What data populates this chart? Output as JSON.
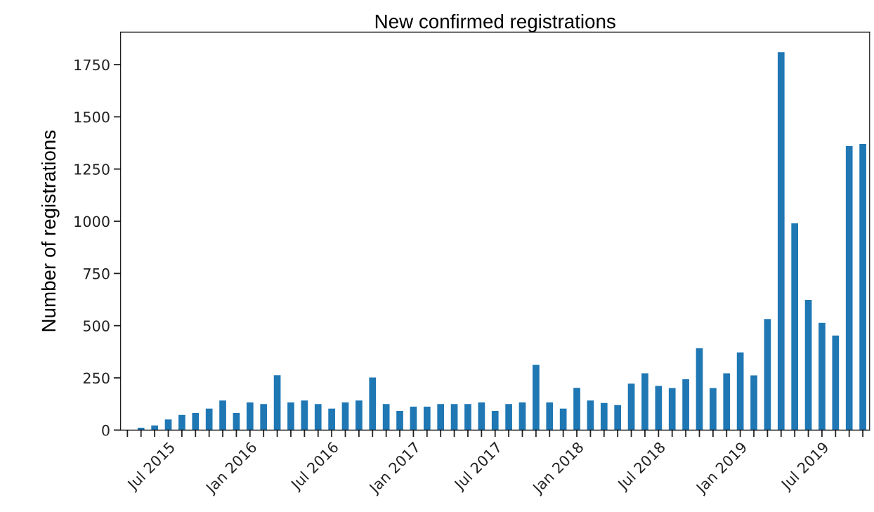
{
  "chart_data": {
    "type": "bar",
    "title": "New confirmed registrations",
    "ylabel": "Number of registrations",
    "categories": [
      null,
      null,
      null,
      "Jul 2015",
      null,
      null,
      null,
      null,
      null,
      "Jan 2016",
      null,
      null,
      null,
      null,
      null,
      "Jul 2016",
      null,
      null,
      null,
      null,
      null,
      "Jan 2017",
      null,
      null,
      null,
      null,
      null,
      "Jul 2017",
      null,
      null,
      null,
      null,
      null,
      "Jan 2018",
      null,
      null,
      null,
      null,
      null,
      "Jul 2018",
      null,
      null,
      null,
      null,
      null,
      "Jan 2019",
      null,
      null,
      null,
      null,
      null,
      "Jul 2019",
      null,
      null,
      null
    ],
    "values": [
      0,
      11,
      22,
      51,
      73,
      82,
      103,
      142,
      82,
      132,
      125,
      263,
      132,
      142,
      125,
      103,
      132,
      142,
      252,
      125,
      92,
      112,
      112,
      125,
      125,
      125,
      132,
      92,
      125,
      132,
      312,
      132,
      103,
      202,
      142,
      130,
      120,
      222,
      272,
      211,
      201,
      243,
      392,
      201,
      272,
      372,
      262,
      532,
      1810,
      990,
      623,
      513,
      453,
      1360,
      1370
    ],
    "color": "#1f77b4",
    "ylim": [
      0,
      1905
    ],
    "yticks": [
      0,
      250,
      500,
      750,
      1000,
      1250,
      1500,
      1750
    ],
    "grid": false,
    "legend": false
  }
}
